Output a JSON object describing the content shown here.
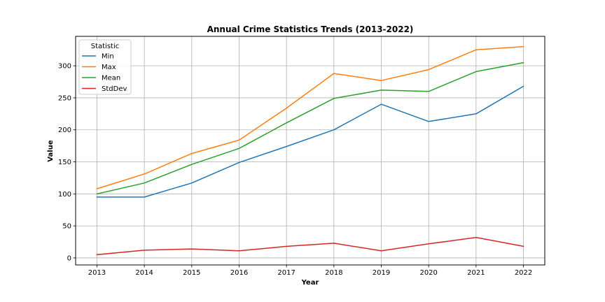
{
  "chart_data": {
    "type": "line",
    "title": "Annual Crime Statistics Trends (2013-2022)",
    "xlabel": "Year",
    "ylabel": "Value",
    "x": [
      2013,
      2014,
      2015,
      2016,
      2017,
      2018,
      2019,
      2020,
      2021,
      2022
    ],
    "xlim": [
      2012.55,
      2022.45
    ],
    "ylim": [
      -11,
      346
    ],
    "yticks": [
      0,
      50,
      100,
      150,
      200,
      250,
      300
    ],
    "grid": true,
    "legend": {
      "title": "Statistic",
      "placement": "top-left"
    },
    "series": [
      {
        "name": "Min",
        "color": "#1f77b4",
        "values": [
          95,
          95,
          117,
          149,
          174,
          200,
          240,
          213,
          225,
          268
        ]
      },
      {
        "name": "Max",
        "color": "#ff7f0e",
        "values": [
          108,
          131,
          163,
          184,
          234,
          288,
          277,
          294,
          325,
          330
        ]
      },
      {
        "name": "Mean",
        "color": "#2ca02c",
        "values": [
          100,
          117,
          146,
          171,
          211,
          249,
          262,
          260,
          291,
          305
        ]
      },
      {
        "name": "StdDev",
        "color": "#d62728",
        "values": [
          5,
          12,
          14,
          11,
          18,
          23,
          11,
          22,
          32,
          18
        ]
      }
    ]
  }
}
